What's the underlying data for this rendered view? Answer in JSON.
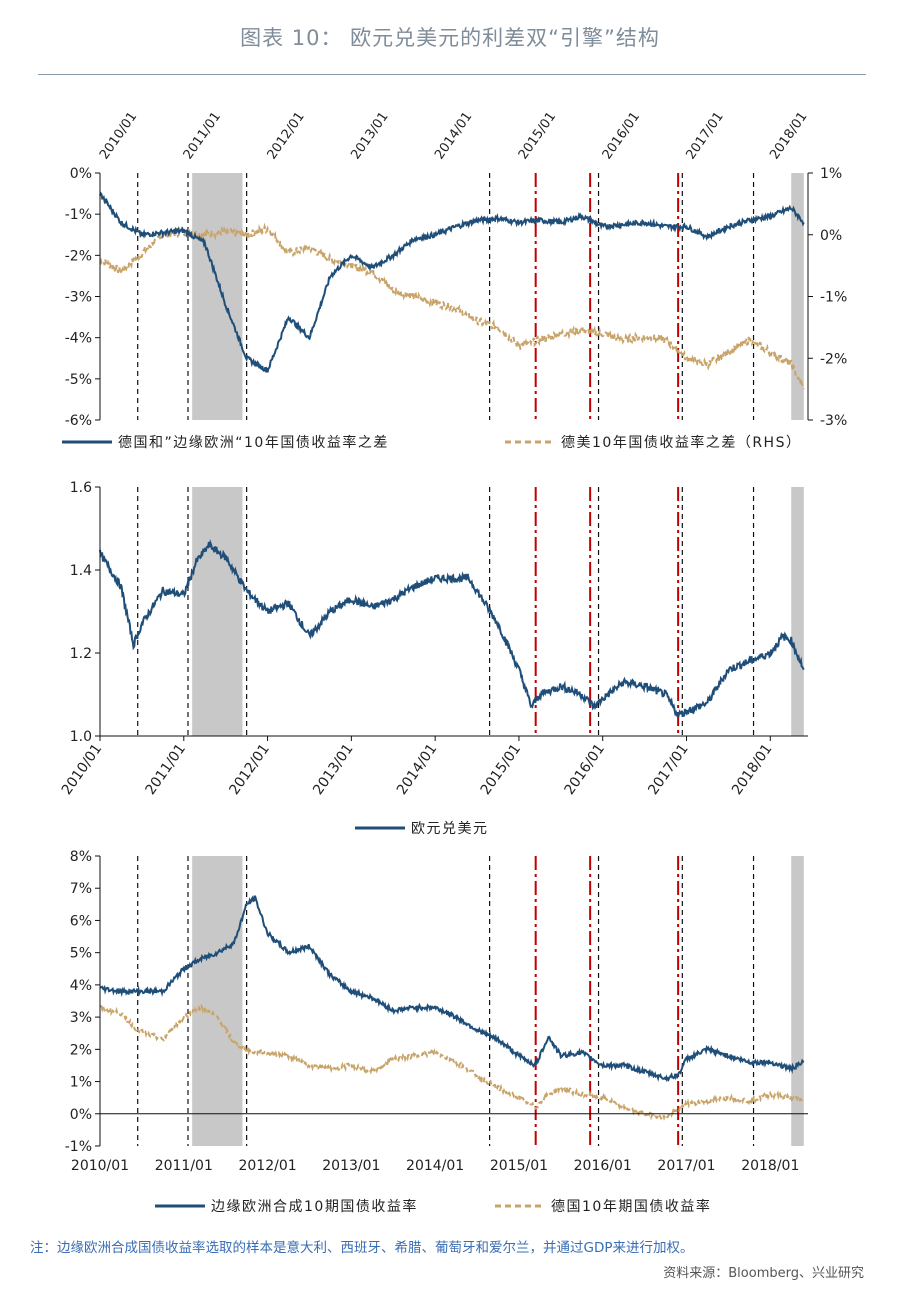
{
  "title": "图表 10：  欧元兑美元的利差双“引擎”结构",
  "note": "注：边缘欧洲合成国债收益率选取的样本是意大利、西班牙、希腊、葡萄牙和爱尔兰，并通过GDP来进行加权。",
  "source": "资料来源：Bloomberg、兴业研究",
  "colors": {
    "navy": "#1f4e79",
    "tan": "#c9a46a",
    "grey_band": "#c8c8c8",
    "red": "#c00000",
    "title": "#7f8c99"
  },
  "date_labels": [
    "2010/01",
    "2011/01",
    "2012/01",
    "2013/01",
    "2014/01",
    "2015/01",
    "2016/01",
    "2017/01",
    "2018/01"
  ],
  "chart_data": [
    {
      "type": "line",
      "id": "spreads",
      "x": [
        2010.0,
        2010.25,
        2010.5,
        2010.75,
        2011.0,
        2011.25,
        2011.5,
        2011.75,
        2012.0,
        2012.25,
        2012.5,
        2012.75,
        2013.0,
        2013.25,
        2013.5,
        2013.75,
        2014.0,
        2014.25,
        2014.5,
        2014.75,
        2015.0,
        2015.25,
        2015.5,
        2015.75,
        2016.0,
        2016.25,
        2016.5,
        2016.75,
        2017.0,
        2017.25,
        2017.5,
        2017.75,
        2018.0,
        2018.25,
        2018.4
      ],
      "series": [
        {
          "name": "德国和”边缘欧洲“10年国债收益率之差",
          "axis": "left",
          "style": "solid",
          "color": "#1f4e79",
          "values": [
            -0.5,
            -1.2,
            -1.5,
            -1.45,
            -1.4,
            -1.7,
            -3.2,
            -4.5,
            -4.8,
            -3.5,
            -4.0,
            -2.5,
            -2.0,
            -2.3,
            -2.0,
            -1.6,
            -1.5,
            -1.3,
            -1.15,
            -1.1,
            -1.2,
            -1.15,
            -1.2,
            -1.05,
            -1.3,
            -1.25,
            -1.2,
            -1.3,
            -1.3,
            -1.55,
            -1.3,
            -1.15,
            -1.05,
            -0.85,
            -1.2
          ]
        },
        {
          "name": "德美10年国债收益率之差（RHS）",
          "axis": "right",
          "style": "dashed",
          "color": "#c9a46a",
          "values": [
            -0.4,
            -0.6,
            -0.3,
            0.0,
            0.05,
            0.0,
            0.05,
            0.0,
            0.1,
            -0.3,
            -0.2,
            -0.4,
            -0.5,
            -0.6,
            -0.9,
            -1.0,
            -1.1,
            -1.2,
            -1.4,
            -1.5,
            -1.8,
            -1.7,
            -1.6,
            -1.55,
            -1.6,
            -1.7,
            -1.65,
            -1.7,
            -2.0,
            -2.1,
            -1.9,
            -1.7,
            -1.9,
            -2.1,
            -2.5
          ]
        }
      ],
      "yleft": {
        "lim": [
          -6,
          0
        ],
        "ticks": [
          "0%",
          "-1%",
          "-2%",
          "-3%",
          "-4%",
          "-5%",
          "-6%"
        ]
      },
      "yright": {
        "lim": [
          -3,
          1
        ],
        "ticks": [
          "1%",
          "0%",
          "-1%",
          "-2%",
          "-3%"
        ]
      },
      "legend": "bottom",
      "vlines_black": [
        2010.45,
        2011.05,
        2011.75,
        2014.65,
        2015.95,
        2016.95,
        2017.8
      ],
      "vlines_red": [
        2015.2,
        2015.85,
        2016.9
      ],
      "grey_bands": [
        [
          2011.1,
          2011.7
        ],
        [
          2018.25,
          2018.4
        ]
      ]
    },
    {
      "type": "line",
      "id": "eurusd",
      "x": [
        2010.0,
        2010.25,
        2010.4,
        2010.5,
        2010.75,
        2011.0,
        2011.15,
        2011.3,
        2011.5,
        2011.75,
        2012.0,
        2012.25,
        2012.5,
        2012.75,
        2013.0,
        2013.25,
        2013.5,
        2013.75,
        2014.0,
        2014.25,
        2014.4,
        2014.5,
        2014.75,
        2015.0,
        2015.15,
        2015.25,
        2015.5,
        2015.75,
        2015.9,
        2016.0,
        2016.25,
        2016.5,
        2016.75,
        2016.9,
        2017.0,
        2017.25,
        2017.5,
        2017.75,
        2018.0,
        2018.15,
        2018.25,
        2018.4
      ],
      "series": [
        {
          "name": "欧元兑美元",
          "style": "solid",
          "color": "#1f4e79",
          "values": [
            1.44,
            1.36,
            1.22,
            1.27,
            1.35,
            1.34,
            1.42,
            1.46,
            1.43,
            1.35,
            1.3,
            1.32,
            1.24,
            1.3,
            1.33,
            1.31,
            1.33,
            1.36,
            1.38,
            1.38,
            1.38,
            1.35,
            1.27,
            1.16,
            1.07,
            1.1,
            1.12,
            1.1,
            1.07,
            1.09,
            1.13,
            1.12,
            1.1,
            1.05,
            1.06,
            1.08,
            1.16,
            1.18,
            1.2,
            1.24,
            1.23,
            1.16
          ]
        }
      ],
      "ylim": [
        1.0,
        1.6
      ],
      "yticks": [
        "1.6",
        "1.4",
        "1.2",
        "1.0"
      ],
      "legend": "bottom",
      "vlines_black": [
        2010.45,
        2011.05,
        2011.75,
        2014.65,
        2015.95,
        2016.95,
        2017.8
      ],
      "vlines_red": [
        2015.2,
        2015.85,
        2016.9
      ],
      "grey_bands": [
        [
          2011.1,
          2011.7
        ],
        [
          2018.25,
          2018.4
        ]
      ]
    },
    {
      "type": "line",
      "id": "yields",
      "x": [
        2010.0,
        2010.25,
        2010.45,
        2010.75,
        2011.0,
        2011.2,
        2011.4,
        2011.6,
        2011.75,
        2011.85,
        2012.0,
        2012.25,
        2012.5,
        2012.75,
        2013.0,
        2013.25,
        2013.5,
        2013.75,
        2014.0,
        2014.25,
        2014.5,
        2014.75,
        2015.0,
        2015.2,
        2015.35,
        2015.5,
        2015.75,
        2016.0,
        2016.25,
        2016.5,
        2016.75,
        2016.9,
        2017.0,
        2017.25,
        2017.5,
        2017.75,
        2018.0,
        2018.25,
        2018.4
      ],
      "series": [
        {
          "name": "边缘欧洲合成10期国债收益率",
          "style": "solid",
          "color": "#1f4e79",
          "values": [
            3.9,
            3.8,
            3.8,
            3.8,
            4.5,
            4.8,
            5.0,
            5.3,
            6.5,
            6.7,
            5.6,
            5.0,
            5.2,
            4.3,
            3.8,
            3.6,
            3.2,
            3.3,
            3.3,
            3.0,
            2.6,
            2.3,
            1.8,
            1.5,
            2.4,
            1.8,
            1.9,
            1.5,
            1.5,
            1.3,
            1.1,
            1.2,
            1.7,
            2.0,
            1.8,
            1.6,
            1.6,
            1.4,
            1.6
          ]
        },
        {
          "name": "德国10年期国债收益率",
          "style": "dashed",
          "color": "#c9a46a",
          "values": [
            3.3,
            3.1,
            2.6,
            2.3,
            3.0,
            3.3,
            3.0,
            2.2,
            2.0,
            1.9,
            1.9,
            1.8,
            1.5,
            1.4,
            1.5,
            1.3,
            1.7,
            1.8,
            1.9,
            1.6,
            1.2,
            0.8,
            0.5,
            0.2,
            0.6,
            0.8,
            0.6,
            0.5,
            0.2,
            0.0,
            -0.1,
            0.1,
            0.3,
            0.4,
            0.5,
            0.4,
            0.6,
            0.5,
            0.4
          ]
        }
      ],
      "ylim": [
        -1,
        8
      ],
      "yticks": [
        "8%",
        "7%",
        "6%",
        "5%",
        "4%",
        "3%",
        "2%",
        "1%",
        "0%",
        "-1%"
      ],
      "legend": "bottom",
      "vlines_black": [
        2010.45,
        2011.05,
        2011.75,
        2014.65,
        2015.95,
        2016.95,
        2017.8
      ],
      "vlines_red": [
        2015.2,
        2015.85,
        2016.9
      ],
      "grey_bands": [
        [
          2011.1,
          2011.7
        ],
        [
          2018.25,
          2018.4
        ]
      ]
    }
  ]
}
